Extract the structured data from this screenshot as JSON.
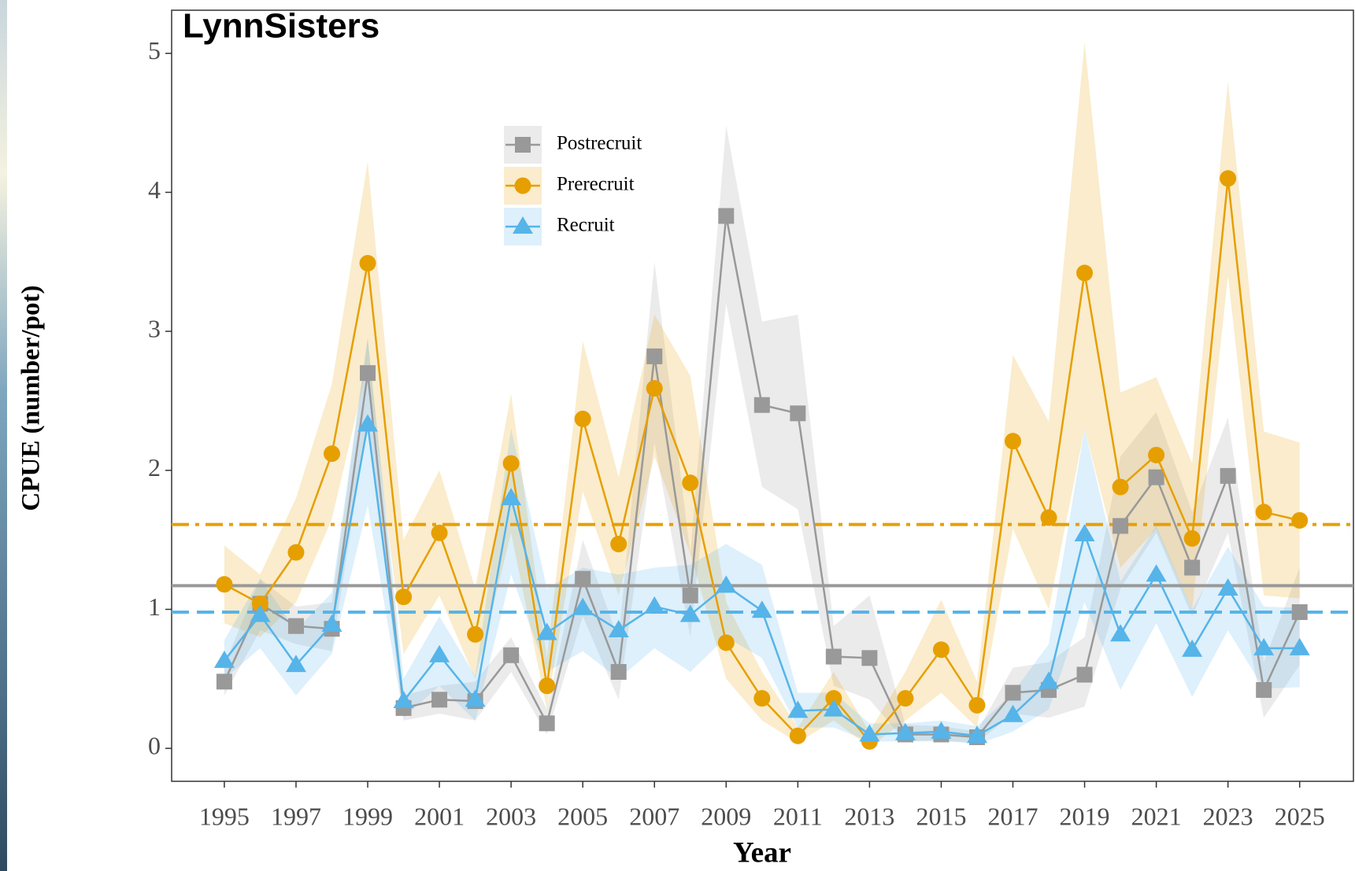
{
  "chart_data": {
    "type": "line",
    "title": "LynnSisters",
    "x_label": "Year",
    "y_label": "CPUE (number/pot)",
    "x": [
      1995,
      1996,
      1997,
      1998,
      1999,
      2000,
      2001,
      2002,
      2003,
      2004,
      2005,
      2006,
      2007,
      2008,
      2009,
      2010,
      2011,
      2012,
      2013,
      2014,
      2015,
      2016,
      2017,
      2018,
      2019,
      2020,
      2021,
      2022,
      2023,
      2024,
      2025
    ],
    "xlim": [
      1993.53,
      2026.5
    ],
    "xticks": [
      1995,
      1997,
      1999,
      2001,
      2003,
      2005,
      2007,
      2009,
      2011,
      2013,
      2015,
      2017,
      2019,
      2021,
      2023,
      2025
    ],
    "ylim": [
      -0.237,
      5.31
    ],
    "yticks": [
      0,
      1,
      2,
      3,
      4,
      5
    ],
    "grid": false,
    "series": [
      {
        "name": "Postrecruit",
        "color": "#999999",
        "marker": "square",
        "mean": 1.17,
        "mean_style": "solid",
        "values": [
          0.48,
          1.04,
          0.88,
          0.86,
          2.7,
          0.29,
          0.35,
          0.34,
          0.67,
          0.18,
          1.22,
          0.55,
          2.82,
          1.1,
          3.83,
          2.47,
          2.41,
          0.66,
          0.65,
          0.1,
          0.1,
          0.08,
          0.4,
          0.42,
          0.53,
          1.6,
          1.95,
          1.3,
          1.96,
          0.42,
          0.98
        ],
        "lower": [
          0.38,
          0.85,
          0.75,
          0.7,
          2.35,
          0.2,
          0.25,
          0.2,
          0.55,
          0.1,
          0.95,
          0.35,
          2.2,
          0.8,
          3.2,
          1.88,
          1.72,
          0.45,
          0.35,
          0.05,
          0.05,
          0.04,
          0.25,
          0.22,
          0.3,
          1.15,
          1.55,
          0.95,
          1.55,
          0.22,
          0.6
        ],
        "upper": [
          0.6,
          1.22,
          1.02,
          1.05,
          2.95,
          0.38,
          0.45,
          0.48,
          0.8,
          0.28,
          1.5,
          0.78,
          3.5,
          1.4,
          4.48,
          3.07,
          3.12,
          0.88,
          1.1,
          0.17,
          0.16,
          0.12,
          0.58,
          0.62,
          0.8,
          2.1,
          2.42,
          1.7,
          2.38,
          0.62,
          1.3
        ]
      },
      {
        "name": "Prerecruit",
        "color": "#E69F00",
        "marker": "circle",
        "mean": 1.61,
        "mean_style": "dashdot",
        "values": [
          1.18,
          1.04,
          1.41,
          2.12,
          3.49,
          1.09,
          1.55,
          0.82,
          2.05,
          0.45,
          2.37,
          1.47,
          2.59,
          1.91,
          0.76,
          0.36,
          0.09,
          0.36,
          0.05,
          0.36,
          0.71,
          0.31,
          2.21,
          1.66,
          3.42,
          1.88,
          2.11,
          1.51,
          4.1,
          1.7,
          1.64
        ],
        "lower": [
          0.9,
          0.8,
          1.05,
          1.65,
          2.75,
          0.68,
          1.1,
          0.5,
          1.55,
          0.28,
          1.85,
          1.1,
          2.1,
          1.4,
          0.5,
          0.2,
          0.04,
          0.2,
          0.01,
          0.2,
          0.4,
          0.15,
          1.58,
          1.0,
          2.3,
          1.3,
          1.58,
          1.0,
          3.4,
          1.1,
          1.08
        ],
        "upper": [
          1.46,
          1.25,
          1.8,
          2.62,
          4.22,
          1.5,
          2.0,
          1.15,
          2.55,
          0.65,
          2.93,
          1.95,
          3.12,
          2.68,
          1.05,
          0.55,
          0.15,
          0.55,
          0.12,
          0.55,
          1.07,
          0.48,
          2.83,
          2.35,
          5.08,
          2.56,
          2.67,
          2.05,
          4.8,
          2.28,
          2.2
        ]
      },
      {
        "name": "Recruit",
        "color": "#56B4E9",
        "marker": "triangle",
        "mean": 0.98,
        "mean_style": "dashed",
        "values": [
          0.63,
          0.96,
          0.6,
          0.89,
          2.33,
          0.34,
          0.67,
          0.35,
          1.8,
          0.83,
          1.01,
          0.85,
          1.02,
          0.96,
          1.17,
          0.99,
          0.27,
          0.28,
          0.1,
          0.11,
          0.12,
          0.09,
          0.24,
          0.48,
          1.54,
          0.82,
          1.25,
          0.71,
          1.15,
          0.72,
          0.72
        ],
        "lower": [
          0.5,
          0.72,
          0.38,
          0.68,
          1.75,
          0.22,
          0.45,
          0.2,
          1.25,
          0.55,
          0.7,
          0.5,
          0.72,
          0.55,
          0.8,
          0.65,
          0.15,
          0.15,
          0.05,
          0.05,
          0.06,
          0.03,
          0.12,
          0.28,
          1.05,
          0.42,
          0.9,
          0.37,
          0.85,
          0.43,
          0.44
        ],
        "upper": [
          0.78,
          1.22,
          0.85,
          1.12,
          2.95,
          0.5,
          0.95,
          0.52,
          2.3,
          1.15,
          1.3,
          1.25,
          1.3,
          1.32,
          1.47,
          1.32,
          0.4,
          0.4,
          0.18,
          0.18,
          0.2,
          0.16,
          0.4,
          0.75,
          2.3,
          1.2,
          1.6,
          1.0,
          1.45,
          1.02,
          1.01
        ]
      }
    ]
  }
}
